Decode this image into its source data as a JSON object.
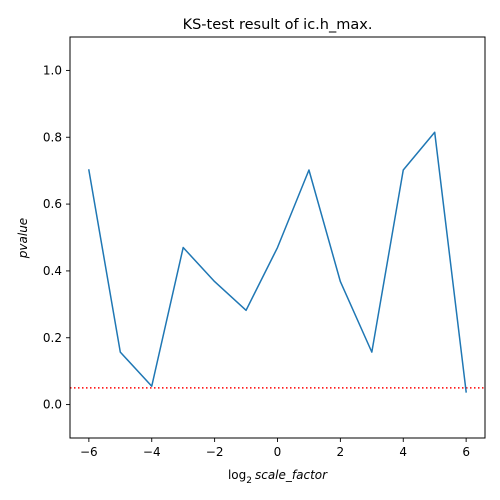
{
  "chart_data": {
    "type": "line",
    "title": "KS-test result of ic.h_max.",
    "xlabel": {
      "prefix": "log",
      "subscript": "2",
      "var": "scale_factor"
    },
    "ylabel": "pvalue",
    "xlim": [
      -6.6,
      6.6
    ],
    "ylim": [
      -0.1,
      1.1
    ],
    "xticks": [
      -6,
      -4,
      -2,
      0,
      2,
      4,
      6
    ],
    "xtick_labels": [
      "−6",
      "−4",
      "−2",
      "0",
      "2",
      "4",
      "6"
    ],
    "yticks": [
      0.0,
      0.2,
      0.4,
      0.6,
      0.8,
      1.0
    ],
    "ytick_labels": [
      "0.0",
      "0.2",
      "0.4",
      "0.6",
      "0.8",
      "1.0"
    ],
    "grid": false,
    "series": [
      {
        "color": "#1f77b4",
        "x": [
          -6,
          -5,
          -4,
          -3,
          -2,
          -1,
          0,
          1,
          2,
          3,
          4,
          5,
          6
        ],
        "y": [
          0.702,
          0.157,
          0.055,
          0.47,
          0.368,
          0.282,
          0.47,
          0.702,
          0.368,
          0.157,
          0.702,
          0.815,
          0.038
        ]
      }
    ],
    "reference_line": {
      "y": 0.05,
      "style": "dotted",
      "color": "#ff0000"
    }
  }
}
